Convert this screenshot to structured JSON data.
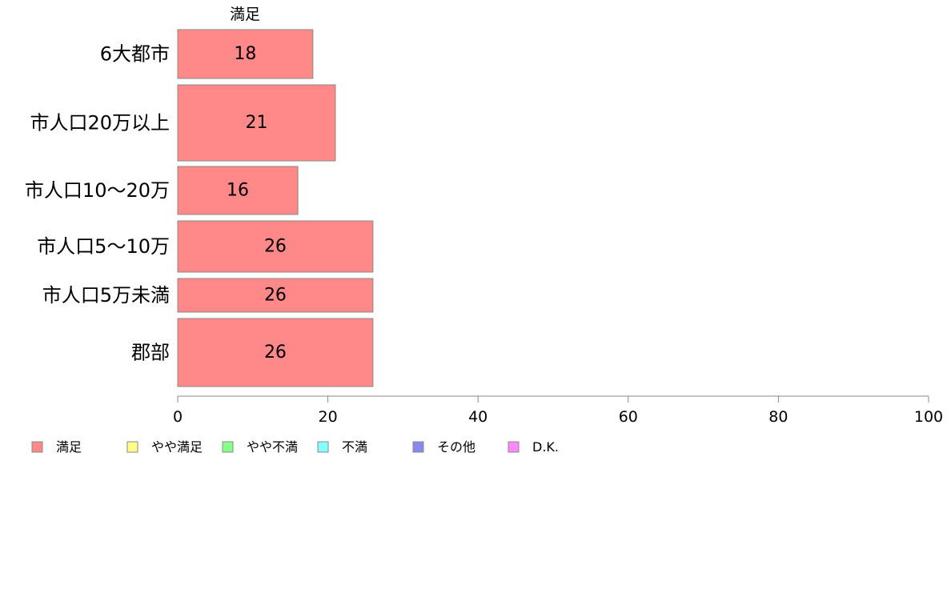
{
  "chart_data": {
    "type": "bar",
    "orientation": "horizontal",
    "stacked": true,
    "categories": [
      "6大都市",
      "市人口20万以上",
      "市人口10〜20万",
      "市人口5〜10万",
      "市人口5万未満",
      "郡部"
    ],
    "series": [
      {
        "name": "満足",
        "values": [
          18,
          21,
          16,
          26,
          26,
          26
        ],
        "color": "#ff8888"
      }
    ],
    "series_header": "満足",
    "legend": [
      {
        "name": "満足",
        "color": "#ff8888"
      },
      {
        "name": "やや満足",
        "color": "#ffff88"
      },
      {
        "name": "やや不満",
        "color": "#88ff88"
      },
      {
        "name": "不満",
        "color": "#88ffff"
      },
      {
        "name": "その他",
        "color": "#8888ee"
      },
      {
        "name": "D.K.",
        "color": "#ff88ff"
      }
    ],
    "legend_position": "bottom-left",
    "xlim": [
      0,
      100
    ],
    "xticks": [
      0,
      20,
      40,
      60,
      80,
      100
    ],
    "grid": false
  }
}
